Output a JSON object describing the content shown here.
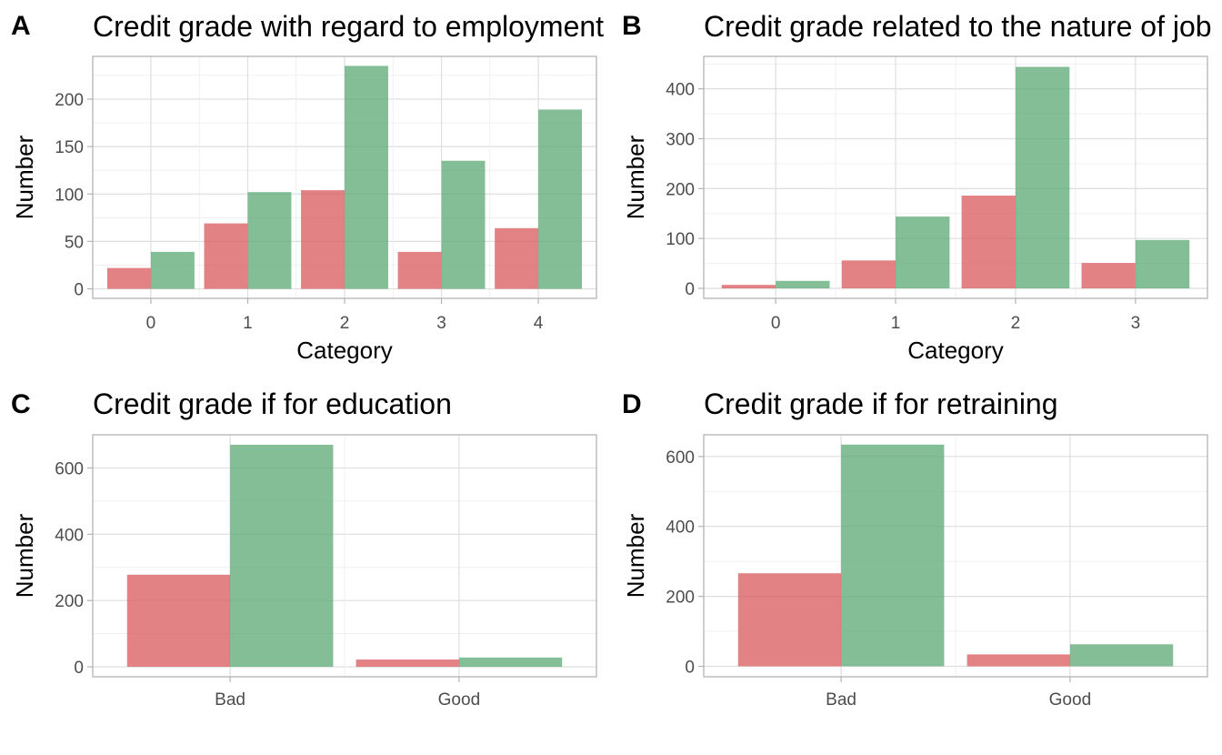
{
  "colors": {
    "bad": "#d9585c",
    "good": "#5ba874"
  },
  "chart_data": [
    {
      "tag": "A",
      "type": "bar",
      "title": "Credit grade with regard to employment",
      "xlabel": "Category",
      "ylabel": "Number",
      "categories": [
        "0",
        "1",
        "2",
        "3",
        "4"
      ],
      "series": [
        {
          "key": "bad",
          "values": [
            22,
            69,
            104,
            39,
            64
          ]
        },
        {
          "key": "good",
          "values": [
            39,
            102,
            235,
            135,
            189
          ]
        }
      ],
      "yticks": [
        0,
        50,
        100,
        150,
        200
      ],
      "ylim": [
        -10,
        245
      ]
    },
    {
      "tag": "B",
      "type": "bar",
      "title": "Credit grade related to the nature of job",
      "xlabel": "Category",
      "ylabel": "Number",
      "categories": [
        "0",
        "1",
        "2",
        "3"
      ],
      "series": [
        {
          "key": "bad",
          "values": [
            7,
            56,
            186,
            51
          ]
        },
        {
          "key": "good",
          "values": [
            15,
            144,
            444,
            97
          ]
        }
      ],
      "yticks": [
        0,
        100,
        200,
        300,
        400
      ],
      "ylim": [
        -20,
        465
      ]
    },
    {
      "tag": "C",
      "type": "bar",
      "title": "Credit grade if for education",
      "xlabel": "",
      "ylabel": "Number",
      "categories": [
        "Bad",
        "Good"
      ],
      "series": [
        {
          "key": "bad",
          "values": [
            278,
            22
          ]
        },
        {
          "key": "good",
          "values": [
            670,
            28
          ]
        }
      ],
      "yticks": [
        0,
        200,
        400,
        600
      ],
      "ylim": [
        -30,
        700
      ]
    },
    {
      "tag": "D",
      "type": "bar",
      "title": "Credit grade if for retraining",
      "xlabel": "",
      "ylabel": "Number",
      "categories": [
        "Bad",
        "Good"
      ],
      "series": [
        {
          "key": "bad",
          "values": [
            266,
            34
          ]
        },
        {
          "key": "good",
          "values": [
            634,
            63
          ]
        }
      ],
      "yticks": [
        0,
        200,
        400,
        600
      ],
      "ylim": [
        -30,
        662
      ]
    }
  ]
}
